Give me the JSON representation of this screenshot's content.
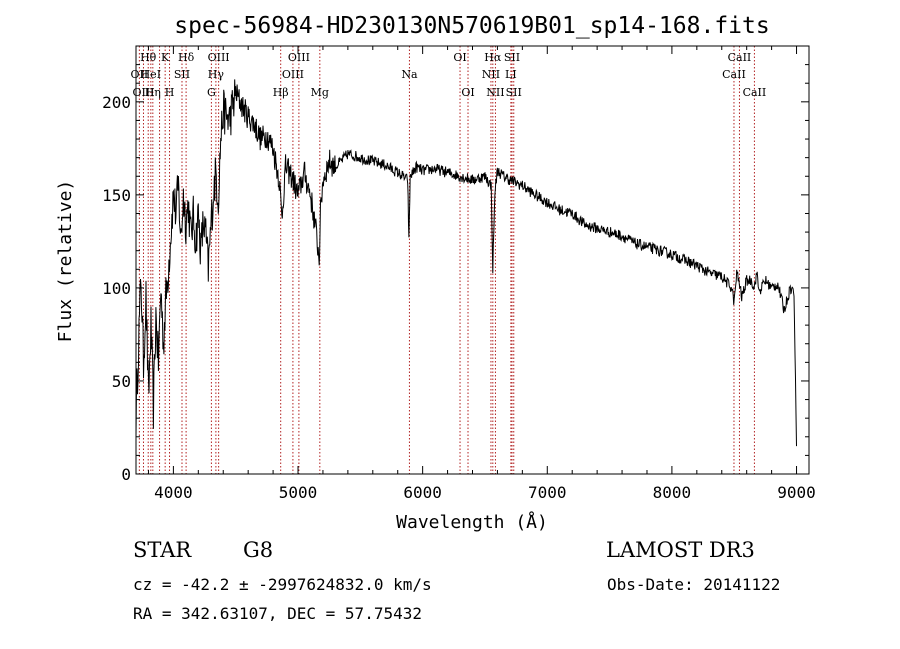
{
  "chart_data": {
    "type": "line",
    "title": "spec-56984-HD230130N570619B01_sp14-168.fits",
    "xlabel": "Wavelength (Å)",
    "ylabel": "Flux (relative)",
    "xlim": [
      3700,
      9100
    ],
    "ylim": [
      0,
      230
    ],
    "xticks": [
      4000,
      5000,
      6000,
      7000,
      8000,
      9000
    ],
    "yticks": [
      0,
      50,
      100,
      150,
      200
    ],
    "series": [
      {
        "name": "spectrum",
        "x": [
          3700,
          3720,
          3740,
          3760,
          3780,
          3800,
          3820,
          3840,
          3860,
          3880,
          3900,
          3920,
          3940,
          3960,
          3980,
          4000,
          4020,
          4040,
          4060,
          4080,
          4100,
          4120,
          4140,
          4160,
          4180,
          4200,
          4220,
          4240,
          4260,
          4280,
          4300,
          4320,
          4340,
          4360,
          4380,
          4400,
          4450,
          4500,
          4550,
          4600,
          4650,
          4700,
          4750,
          4800,
          4850,
          4870,
          4900,
          4950,
          5000,
          5050,
          5100,
          5150,
          5170,
          5180,
          5200,
          5250,
          5300,
          5400,
          5500,
          5600,
          5700,
          5800,
          5880,
          5890,
          5900,
          5950,
          6000,
          6100,
          6200,
          6300,
          6400,
          6500,
          6550,
          6563,
          6580,
          6600,
          6650,
          6700,
          6800,
          6900,
          7000,
          7100,
          7200,
          7300,
          7400,
          7500,
          7600,
          7700,
          7800,
          7900,
          8000,
          8100,
          8200,
          8300,
          8400,
          8480,
          8500,
          8520,
          8540,
          8560,
          8600,
          8640,
          8660,
          8680,
          8700,
          8750,
          8800,
          8850,
          8900,
          8950,
          8980,
          9000
        ],
        "y": [
          30,
          70,
          105,
          60,
          95,
          40,
          80,
          35,
          85,
          60,
          100,
          70,
          95,
          110,
          130,
          150,
          140,
          155,
          125,
          150,
          135,
          145,
          128,
          138,
          125,
          140,
          120,
          135,
          128,
          110,
          132,
          150,
          162,
          148,
          180,
          195,
          190,
          205,
          198,
          192,
          188,
          180,
          182,
          175,
          158,
          138,
          165,
          160,
          150,
          162,
          150,
          128,
          115,
          140,
          158,
          168,
          165,
          172,
          170,
          168,
          166,
          162,
          158,
          125,
          160,
          165,
          163,
          164,
          162,
          160,
          158,
          160,
          155,
          110,
          152,
          163,
          160,
          158,
          155,
          150,
          146,
          142,
          140,
          134,
          132,
          130,
          128,
          124,
          122,
          120,
          118,
          115,
          112,
          108,
          106,
          100,
          92,
          108,
          103,
          95,
          104,
          104,
          100,
          108,
          98,
          104,
          100,
          102,
          88,
          100,
          98,
          15
        ]
      }
    ],
    "annotations": [
      {
        "label": "Hθ",
        "x": 3798,
        "row": 1
      },
      {
        "label": "OII",
        "x": 3727,
        "row": 2
      },
      {
        "label": "OIII",
        "x": 3760,
        "row": 3
      },
      {
        "label": "HeI",
        "x": 3819,
        "row": 2
      },
      {
        "label": "Hη",
        "x": 3835,
        "row": 3
      },
      {
        "label": "K",
        "x": 3934,
        "row": 1
      },
      {
        "label": "H",
        "x": 3969,
        "row": 3
      },
      {
        "label": "SII",
        "x": 4069,
        "row": 2
      },
      {
        "label": "Hδ",
        "x": 4102,
        "row": 1
      },
      {
        "label": "OIII",
        "x": 4363,
        "row": 1
      },
      {
        "label": "Hγ",
        "x": 4341,
        "row": 2
      },
      {
        "label": "G",
        "x": 4305,
        "row": 3
      },
      {
        "label": "OIII",
        "x": 5007,
        "row": 1
      },
      {
        "label": "OIII",
        "x": 4959,
        "row": 2
      },
      {
        "label": "Hβ",
        "x": 4861,
        "row": 3
      },
      {
        "label": "Mg",
        "x": 5175,
        "row": 3
      },
      {
        "label": "Na",
        "x": 5894,
        "row": 2
      },
      {
        "label": "OI",
        "x": 6300,
        "row": 1
      },
      {
        "label": "OI",
        "x": 6364,
        "row": 3
      },
      {
        "label": "Hα",
        "x": 6563,
        "row": 1
      },
      {
        "label": "SII",
        "x": 6717,
        "row": 1
      },
      {
        "label": "NII",
        "x": 6548,
        "row": 2
      },
      {
        "label": "LI",
        "x": 6708,
        "row": 2
      },
      {
        "label": "NII",
        "x": 6584,
        "row": 3
      },
      {
        "label": "SII",
        "x": 6731,
        "row": 3
      },
      {
        "label": "CaII",
        "x": 8542,
        "row": 1
      },
      {
        "label": "CaII",
        "x": 8498,
        "row": 2
      },
      {
        "label": "CaII",
        "x": 8662,
        "row": 3
      }
    ],
    "line_markers": [
      3727,
      3760,
      3798,
      3819,
      3835,
      3889,
      3934,
      3969,
      4069,
      4102,
      4305,
      4341,
      4363,
      4861,
      4959,
      5007,
      5175,
      5894,
      6300,
      6364,
      6548,
      6563,
      6584,
      6708,
      6717,
      6731,
      8498,
      8542,
      8662
    ]
  },
  "info": {
    "object_class": "STAR",
    "subclass": "G8",
    "survey": "LAMOST DR3",
    "cz": "cz = -42.2 ± -2997624832.0 km/s",
    "obs_date": "Obs-Date: 20141122",
    "radec": "RA = 342.63107, DEC =  57.75432"
  }
}
